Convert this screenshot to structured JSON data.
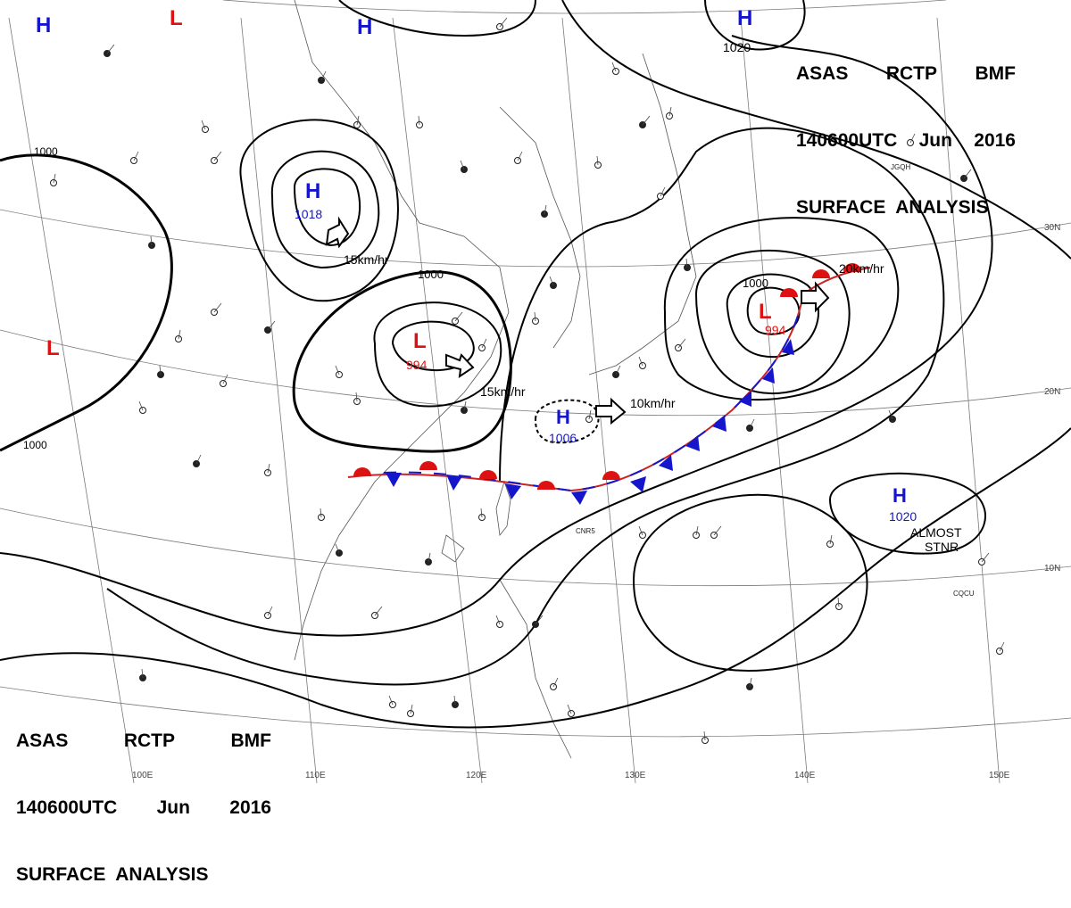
{
  "header": {
    "line1": [
      "ASAS",
      "RCTP",
      "BMF"
    ],
    "line2": [
      "140600UTC",
      "Jun",
      "2016"
    ],
    "line3": "SURFACE  ANALYSIS"
  },
  "pressure_centers": [
    {
      "type": "H",
      "value": ""
    },
    {
      "type": "L",
      "value": ""
    },
    {
      "type": "H",
      "value": ""
    },
    {
      "type": "H",
      "value": "1020"
    },
    {
      "type": "H",
      "value": "1018"
    },
    {
      "type": "L",
      "value": "994"
    },
    {
      "type": "H",
      "value": "1006"
    },
    {
      "type": "L",
      "value": "994"
    },
    {
      "type": "L",
      "value": ""
    },
    {
      "type": "H",
      "value": "1020"
    }
  ],
  "isobar_labels": [
    "1000",
    "1000",
    "1000",
    "1000"
  ],
  "motion_labels": [
    "15km/hr",
    "15km/hr",
    "10km/hr",
    "20km/hr",
    "ALMOST",
    "STNR"
  ],
  "latitude_labels": [
    "30N",
    "20N",
    "10N"
  ],
  "longitude_labels": [
    "100E",
    "110E",
    "120E",
    "130E",
    "140E",
    "150E"
  ],
  "station_codes": [
    "JGQH",
    "CQCU",
    "CNR5"
  ],
  "colors": {
    "high": "#1515cc",
    "low": "#dd1111",
    "warm_front": "#dd1111",
    "cold_front": "#1515cc",
    "isobar": "#000000",
    "grid": "#777777"
  }
}
